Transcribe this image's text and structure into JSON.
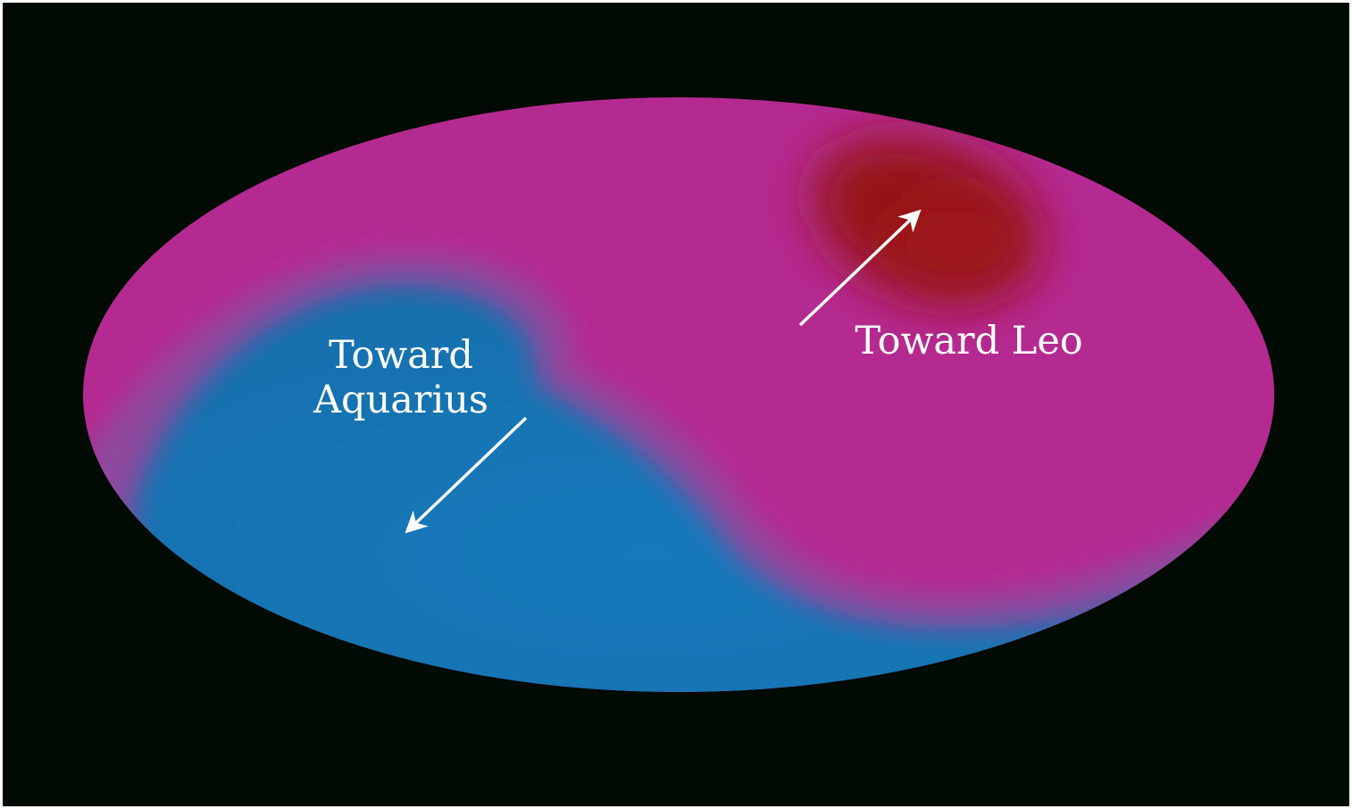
{
  "labels": {
    "leo": "Toward Leo",
    "aquarius_line1": "Toward",
    "aquarius_line2": "Aquarius"
  },
  "colors": {
    "background": "#020a04",
    "hot_region": "#b62a92",
    "cold_region": "#1676b8",
    "hot_spot": "#951418",
    "arrow": "#ffffff"
  }
}
